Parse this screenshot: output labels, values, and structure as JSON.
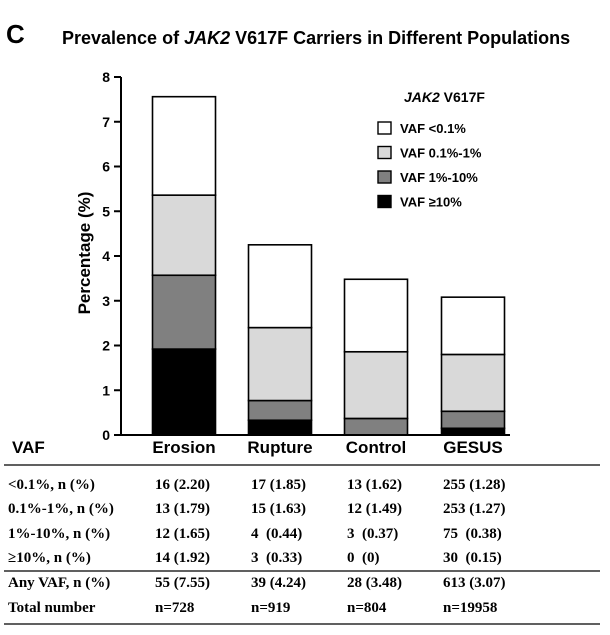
{
  "panel_letter": "C",
  "chart_data": {
    "type": "bar",
    "stacked": true,
    "title": {
      "prefix": "Prevalence of ",
      "gene": "JAK2",
      "suffix": " V617F Carriers in Different Populations"
    },
    "ylabel": "Percentage (%)",
    "xlabel": "",
    "ylim": [
      0,
      8
    ],
    "yticks": [
      0,
      1,
      2,
      3,
      4,
      5,
      6,
      7,
      8
    ],
    "categories": [
      "Erosion",
      "Rupture",
      "Control",
      "GESUS"
    ],
    "series": [
      {
        "name": "VAF ≥10%",
        "color": "#000000",
        "values": [
          1.92,
          0.33,
          0.0,
          0.15
        ]
      },
      {
        "name": "VAF 1%-10%",
        "color": "#808080",
        "values": [
          1.65,
          0.44,
          0.37,
          0.38
        ]
      },
      {
        "name": "VAF 0.1%-1%",
        "color": "#d9d9d9",
        "values": [
          1.79,
          1.63,
          1.49,
          1.27
        ]
      },
      {
        "name": "VAF <0.1%",
        "color": "#ffffff",
        "values": [
          2.2,
          1.85,
          1.62,
          1.28
        ]
      }
    ],
    "legend": {
      "title_gene": "JAK2",
      "title_suffix": " V617F",
      "placement": "top-right",
      "order": [
        "VAF <0.1%",
        "VAF 0.1%-1%",
        "VAF 1%-10%",
        "VAF ≥10%"
      ]
    }
  },
  "table": {
    "header": "VAF",
    "rows": [
      {
        "label": "<0.1%, n (%)",
        "cells": [
          "16 (2.20)",
          "17 (1.85)",
          "13 (1.62)",
          "255 (1.28)"
        ]
      },
      {
        "label": "0.1%-1%, n (%)",
        "cells": [
          "13 (1.79)",
          "15 (1.63)",
          "12 (1.49)",
          "253 (1.27)"
        ]
      },
      {
        "label": "1%-10%, n (%)",
        "cells": [
          "12 (1.65)",
          "4  (0.44)",
          "3  (0.37)",
          "75  (0.38)"
        ]
      },
      {
        "label": "≥10%, n (%)",
        "cells": [
          "14 (1.92)",
          "3  (0.33)",
          "0  (0)",
          "30  (0.15)"
        ]
      },
      {
        "label": "Any VAF, n (%)",
        "cells": [
          "55 (7.55)",
          "39 (4.24)",
          "28 (3.48)",
          "613 (3.07)"
        ]
      },
      {
        "label": "Total number",
        "cells": [
          "n=728",
          "n=919",
          "n=804",
          "n=19958"
        ]
      }
    ]
  }
}
